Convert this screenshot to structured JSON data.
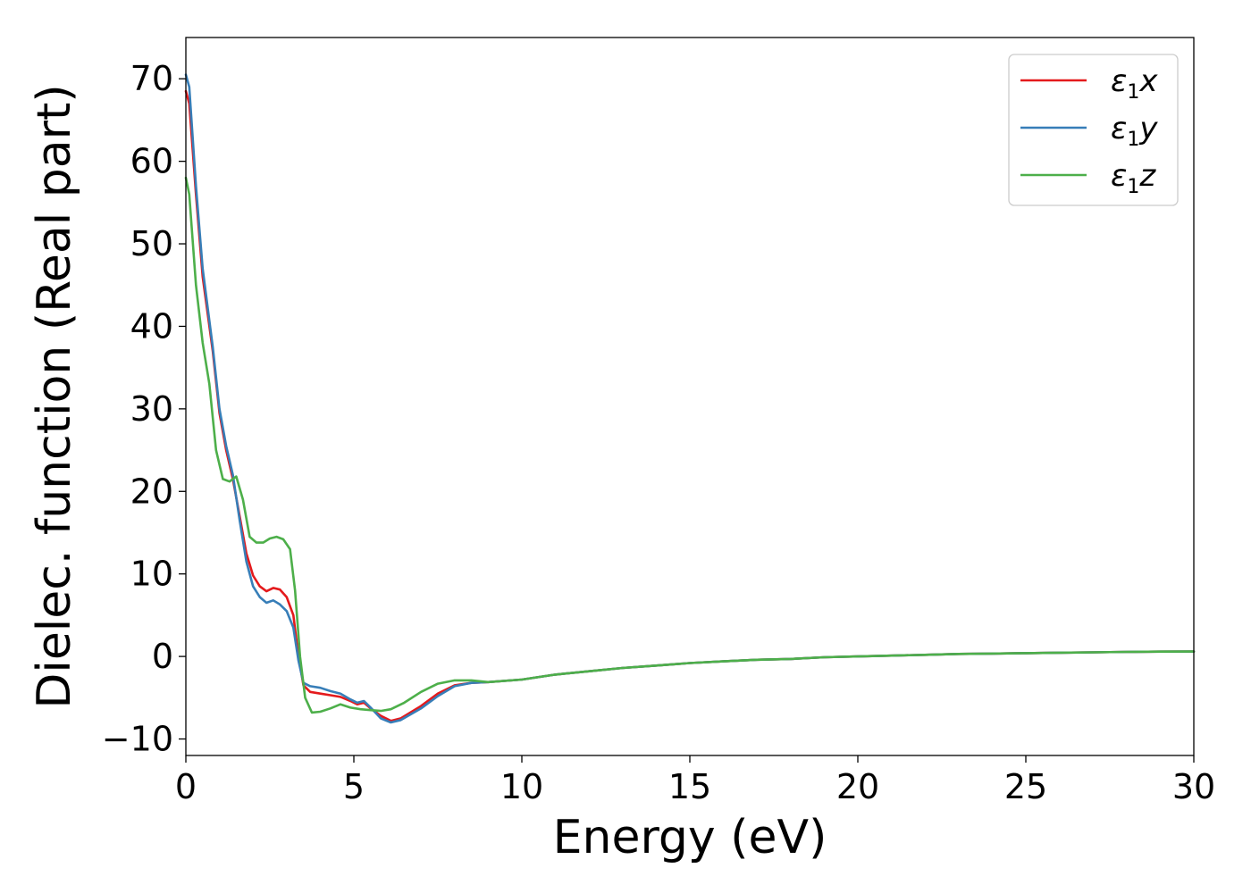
{
  "chart_data": {
    "type": "line",
    "title": "",
    "xlabel": "Energy (eV)",
    "ylabel": "Dielec. function (Real part)",
    "xlim": [
      0,
      30
    ],
    "ylim": [
      -12,
      75
    ],
    "xticks": [
      0,
      5,
      10,
      15,
      20,
      25,
      30
    ],
    "xtick_labels": [
      "0",
      "5",
      "10",
      "15",
      "20",
      "25",
      "30"
    ],
    "yticks": [
      -10,
      0,
      10,
      20,
      30,
      40,
      50,
      60,
      70
    ],
    "ytick_labels": [
      "−10",
      "0",
      "10",
      "20",
      "30",
      "40",
      "50",
      "60",
      "70"
    ],
    "grid": false,
    "legend_position": "top-right",
    "series": [
      {
        "name": "ε₁x",
        "label_main": "ε",
        "label_sub": "1",
        "label_var": "x",
        "color": "#e41a1c",
        "points": [
          [
            0,
            68.5
          ],
          [
            0.1,
            67
          ],
          [
            0.3,
            56
          ],
          [
            0.5,
            46
          ],
          [
            0.8,
            37
          ],
          [
            1.0,
            29.5
          ],
          [
            1.2,
            25
          ],
          [
            1.4,
            21.5
          ],
          [
            1.6,
            17
          ],
          [
            1.8,
            12.5
          ],
          [
            2.0,
            9.8
          ],
          [
            2.2,
            8.5
          ],
          [
            2.4,
            7.9
          ],
          [
            2.6,
            8.3
          ],
          [
            2.8,
            8.1
          ],
          [
            3.0,
            7.2
          ],
          [
            3.2,
            5
          ],
          [
            3.35,
            0
          ],
          [
            3.5,
            -3.5
          ],
          [
            3.7,
            -4.3
          ],
          [
            4.0,
            -4.5
          ],
          [
            4.3,
            -4.7
          ],
          [
            4.6,
            -4.9
          ],
          [
            4.9,
            -5.4
          ],
          [
            5.1,
            -5.8
          ],
          [
            5.3,
            -5.6
          ],
          [
            5.5,
            -6.3
          ],
          [
            5.8,
            -7.2
          ],
          [
            6.1,
            -7.8
          ],
          [
            6.4,
            -7.5
          ],
          [
            7.0,
            -6.0
          ],
          [
            7.5,
            -4.5
          ],
          [
            8.0,
            -3.5
          ],
          [
            8.5,
            -3.2
          ],
          [
            9.0,
            -3.1
          ],
          [
            10,
            -2.8
          ],
          [
            11,
            -2.2
          ],
          [
            12,
            -1.8
          ],
          [
            13,
            -1.4
          ],
          [
            14,
            -1.1
          ],
          [
            15,
            -0.8
          ],
          [
            16,
            -0.6
          ],
          [
            17,
            -0.4
          ],
          [
            18,
            -0.3
          ],
          [
            19,
            -0.1
          ],
          [
            20,
            0
          ],
          [
            21,
            0.1
          ],
          [
            22,
            0.2
          ],
          [
            23,
            0.3
          ],
          [
            24,
            0.35
          ],
          [
            25,
            0.4
          ],
          [
            26,
            0.45
          ],
          [
            27,
            0.5
          ],
          [
            28,
            0.55
          ],
          [
            29,
            0.58
          ],
          [
            30,
            0.6
          ]
        ]
      },
      {
        "name": "ε₁y",
        "label_main": "ε",
        "label_sub": "1",
        "label_var": "y",
        "color": "#377eb8",
        "points": [
          [
            0,
            70.5
          ],
          [
            0.1,
            69
          ],
          [
            0.3,
            57
          ],
          [
            0.5,
            47
          ],
          [
            0.8,
            37.5
          ],
          [
            1.0,
            30
          ],
          [
            1.2,
            25.5
          ],
          [
            1.4,
            22
          ],
          [
            1.6,
            16.5
          ],
          [
            1.8,
            11.5
          ],
          [
            2.0,
            8.5
          ],
          [
            2.2,
            7.2
          ],
          [
            2.4,
            6.5
          ],
          [
            2.6,
            6.8
          ],
          [
            2.8,
            6.3
          ],
          [
            3.0,
            5.5
          ],
          [
            3.2,
            3.5
          ],
          [
            3.35,
            -0.5
          ],
          [
            3.5,
            -3.2
          ],
          [
            3.7,
            -3.6
          ],
          [
            4.0,
            -3.8
          ],
          [
            4.3,
            -4.2
          ],
          [
            4.6,
            -4.5
          ],
          [
            4.9,
            -5.2
          ],
          [
            5.1,
            -5.6
          ],
          [
            5.3,
            -5.4
          ],
          [
            5.5,
            -6.2
          ],
          [
            5.8,
            -7.5
          ],
          [
            6.1,
            -8.0
          ],
          [
            6.4,
            -7.7
          ],
          [
            7.0,
            -6.3
          ],
          [
            7.5,
            -4.8
          ],
          [
            8.0,
            -3.6
          ],
          [
            8.5,
            -3.2
          ],
          [
            9.0,
            -3.1
          ],
          [
            10,
            -2.8
          ],
          [
            11,
            -2.2
          ],
          [
            12,
            -1.8
          ],
          [
            13,
            -1.4
          ],
          [
            14,
            -1.1
          ],
          [
            15,
            -0.8
          ],
          [
            16,
            -0.6
          ],
          [
            17,
            -0.4
          ],
          [
            18,
            -0.3
          ],
          [
            19,
            -0.1
          ],
          [
            20,
            0
          ],
          [
            21,
            0.1
          ],
          [
            22,
            0.2
          ],
          [
            23,
            0.3
          ],
          [
            24,
            0.35
          ],
          [
            25,
            0.4
          ],
          [
            26,
            0.45
          ],
          [
            27,
            0.5
          ],
          [
            28,
            0.55
          ],
          [
            29,
            0.58
          ],
          [
            30,
            0.6
          ]
        ]
      },
      {
        "name": "ε₁z",
        "label_main": "ε",
        "label_sub": "1",
        "label_var": "z",
        "color": "#4daf4a",
        "points": [
          [
            0,
            58
          ],
          [
            0.1,
            56
          ],
          [
            0.3,
            45
          ],
          [
            0.5,
            38
          ],
          [
            0.7,
            33
          ],
          [
            0.9,
            25
          ],
          [
            1.1,
            21.5
          ],
          [
            1.3,
            21.2
          ],
          [
            1.5,
            21.8
          ],
          [
            1.7,
            19
          ],
          [
            1.9,
            14.5
          ],
          [
            2.1,
            13.8
          ],
          [
            2.3,
            13.8
          ],
          [
            2.5,
            14.3
          ],
          [
            2.7,
            14.5
          ],
          [
            2.9,
            14.2
          ],
          [
            3.1,
            13
          ],
          [
            3.25,
            8
          ],
          [
            3.4,
            0
          ],
          [
            3.55,
            -5
          ],
          [
            3.75,
            -6.8
          ],
          [
            4.0,
            -6.7
          ],
          [
            4.3,
            -6.3
          ],
          [
            4.6,
            -5.8
          ],
          [
            4.9,
            -6.2
          ],
          [
            5.2,
            -6.4
          ],
          [
            5.5,
            -6.5
          ],
          [
            5.8,
            -6.6
          ],
          [
            6.1,
            -6.4
          ],
          [
            6.5,
            -5.6
          ],
          [
            7.0,
            -4.3
          ],
          [
            7.5,
            -3.3
          ],
          [
            8.0,
            -2.9
          ],
          [
            8.5,
            -2.9
          ],
          [
            9.0,
            -3.1
          ],
          [
            10,
            -2.8
          ],
          [
            11,
            -2.2
          ],
          [
            12,
            -1.8
          ],
          [
            13,
            -1.4
          ],
          [
            14,
            -1.1
          ],
          [
            15,
            -0.8
          ],
          [
            16,
            -0.6
          ],
          [
            17,
            -0.4
          ],
          [
            18,
            -0.3
          ],
          [
            19,
            -0.1
          ],
          [
            20,
            0
          ],
          [
            21,
            0.1
          ],
          [
            22,
            0.2
          ],
          [
            23,
            0.3
          ],
          [
            24,
            0.35
          ],
          [
            25,
            0.4
          ],
          [
            26,
            0.45
          ],
          [
            27,
            0.5
          ],
          [
            28,
            0.55
          ],
          [
            29,
            0.58
          ],
          [
            30,
            0.6
          ]
        ]
      }
    ]
  }
}
